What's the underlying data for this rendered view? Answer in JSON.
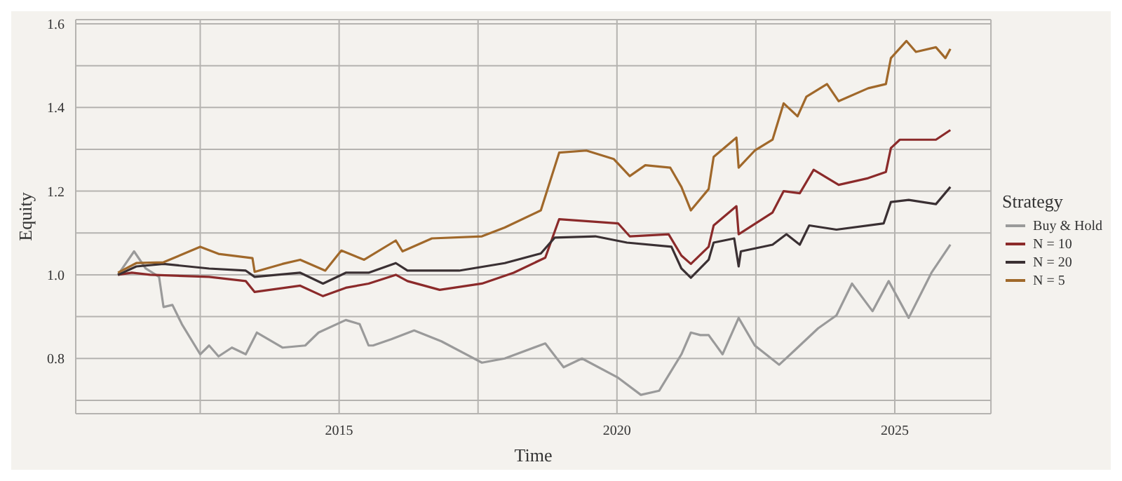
{
  "chart_data": {
    "type": "line",
    "xlabel": "Time",
    "ylabel": "Equity",
    "legend_title": "Strategy",
    "legend": "right",
    "grid": true,
    "line_style": "solid",
    "marker": "none",
    "xlim": [
      2010.26,
      2026.73
    ],
    "xticks": [
      {
        "value": 2012.5,
        "label": null
      },
      2015,
      {
        "value": 2017.5,
        "label": null
      },
      2020,
      {
        "value": 2022.5,
        "label": null
      },
      2025
    ],
    "ylim": [
      0.668,
      1.61
    ],
    "yticks": [
      {
        "value": 0.7,
        "label": null
      },
      0.8,
      {
        "value": 0.9,
        "label": null
      },
      {
        "value": 1.0,
        "label": "1.0"
      },
      {
        "value": 1.1,
        "label": null
      },
      1.2,
      {
        "value": 1.3,
        "label": null
      },
      1.4,
      {
        "value": 1.5,
        "label": null
      },
      1.6
    ],
    "series": [
      {
        "name": "Buy & Hold",
        "color": "#9a9a9a",
        "x": [
          2011.02,
          2011.31,
          2011.52,
          2011.76,
          2011.84,
          2012.0,
          2012.17,
          2012.5,
          2012.66,
          2012.83,
          2013.07,
          2013.32,
          2013.52,
          2013.98,
          2014.39,
          2014.63,
          2015.12,
          2015.37,
          2015.53,
          2015.61,
          2015.94,
          2016.35,
          2016.84,
          2017.57,
          2017.98,
          2018.71,
          2019.04,
          2019.37,
          2020.02,
          2020.43,
          2020.76,
          2021.16,
          2021.33,
          2021.5,
          2021.65,
          2021.9,
          2022.19,
          2022.48,
          2022.92,
          2023.21,
          2023.62,
          2023.95,
          2024.23,
          2024.6,
          2024.89,
          2025.25,
          2025.66,
          2026.0
        ],
        "values": [
          1.0,
          1.056,
          1.015,
          0.995,
          0.923,
          0.928,
          0.882,
          0.81,
          0.831,
          0.805,
          0.826,
          0.81,
          0.862,
          0.826,
          0.831,
          0.862,
          0.892,
          0.882,
          0.831,
          0.831,
          0.846,
          0.867,
          0.841,
          0.79,
          0.8,
          0.836,
          0.779,
          0.8,
          0.754,
          0.713,
          0.723,
          0.81,
          0.862,
          0.856,
          0.856,
          0.81,
          0.897,
          0.831,
          0.785,
          0.821,
          0.872,
          0.903,
          0.979,
          0.913,
          0.985,
          0.897,
          1.005,
          1.072
        ]
      },
      {
        "name": "N = 10",
        "color": "#8b2a2a",
        "x": [
          2011.02,
          2011.27,
          2011.6,
          2012.66,
          2013.32,
          2013.48,
          2014.3,
          2014.71,
          2015.12,
          2015.53,
          2016.02,
          2016.23,
          2016.81,
          2017.57,
          2018.14,
          2018.71,
          2018.96,
          2020.02,
          2020.23,
          2020.93,
          2021.16,
          2021.33,
          2021.65,
          2021.74,
          2022.15,
          2022.19,
          2022.8,
          2023.0,
          2023.29,
          2023.54,
          2023.99,
          2024.52,
          2024.84,
          2024.93,
          2025.09,
          2025.74,
          2026.0
        ],
        "values": [
          1.0,
          1.005,
          1.0,
          0.995,
          0.985,
          0.959,
          0.974,
          0.949,
          0.969,
          0.979,
          1.0,
          0.985,
          0.964,
          0.979,
          1.005,
          1.041,
          1.133,
          1.123,
          1.092,
          1.097,
          1.046,
          1.026,
          1.067,
          1.118,
          1.164,
          1.097,
          1.149,
          1.2,
          1.195,
          1.251,
          1.215,
          1.231,
          1.246,
          1.303,
          1.323,
          1.323,
          1.346
        ]
      },
      {
        "name": "N = 20",
        "color": "#3a3033",
        "x": [
          2011.02,
          2011.35,
          2011.84,
          2012.66,
          2013.32,
          2013.48,
          2014.3,
          2014.71,
          2015.12,
          2015.53,
          2016.02,
          2016.23,
          2017.16,
          2017.98,
          2018.63,
          2018.88,
          2019.61,
          2020.18,
          2020.98,
          2021.16,
          2021.33,
          2021.65,
          2021.74,
          2022.11,
          2022.19,
          2022.23,
          2022.8,
          2023.05,
          2023.29,
          2023.46,
          2023.95,
          2024.8,
          2024.93,
          2025.25,
          2025.74,
          2026.0
        ],
        "values": [
          1.0,
          1.02,
          1.026,
          1.015,
          1.01,
          0.995,
          1.005,
          0.979,
          1.005,
          1.005,
          1.028,
          1.01,
          1.01,
          1.028,
          1.051,
          1.089,
          1.092,
          1.077,
          1.067,
          1.015,
          0.993,
          1.036,
          1.077,
          1.087,
          1.02,
          1.056,
          1.072,
          1.097,
          1.072,
          1.118,
          1.108,
          1.123,
          1.174,
          1.179,
          1.169,
          1.21
        ]
      },
      {
        "name": "N = 5",
        "color": "#a0682a",
        "x": [
          2011.02,
          2011.35,
          2011.84,
          2012.5,
          2012.83,
          2013.44,
          2013.48,
          2013.98,
          2014.3,
          2014.75,
          2015.04,
          2015.45,
          2016.02,
          2016.14,
          2016.67,
          2017.57,
          2017.98,
          2018.63,
          2018.96,
          2019.45,
          2019.94,
          2020.23,
          2020.51,
          2020.96,
          2021.16,
          2021.33,
          2021.65,
          2021.74,
          2022.15,
          2022.19,
          2022.48,
          2022.8,
          2023.0,
          2023.25,
          2023.41,
          2023.78,
          2023.99,
          2024.52,
          2024.84,
          2024.93,
          2025.21,
          2025.38,
          2025.74,
          2025.91,
          2026.0
        ],
        "values": [
          1.005,
          1.028,
          1.03,
          1.067,
          1.05,
          1.04,
          1.007,
          1.026,
          1.036,
          1.01,
          1.058,
          1.036,
          1.082,
          1.056,
          1.087,
          1.092,
          1.113,
          1.154,
          1.292,
          1.297,
          1.277,
          1.236,
          1.262,
          1.256,
          1.21,
          1.154,
          1.205,
          1.282,
          1.328,
          1.256,
          1.297,
          1.323,
          1.41,
          1.379,
          1.426,
          1.456,
          1.415,
          1.446,
          1.456,
          1.518,
          1.559,
          1.533,
          1.544,
          1.518,
          1.54
        ]
      }
    ]
  }
}
